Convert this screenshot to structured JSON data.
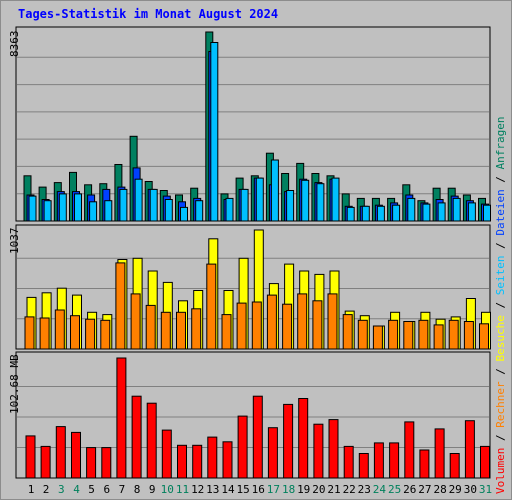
{
  "page": {
    "title": "Tages-Statistik im Monat August 2024"
  },
  "legend": {
    "anfragen": "Anfragen",
    "dateien": "Dateien",
    "seiten": "Seiten",
    "besuche": "Besuche",
    "rechner": "Rechner",
    "volumen": "Volumen",
    "sep": " / "
  },
  "colors": {
    "anfragen": "#008060",
    "dateien": "#0040ff",
    "seiten": "#00c0ff",
    "besuche": "#ffff00",
    "rechner": "#ff8000",
    "volumen": "#ff0000",
    "title": "#0000ff",
    "weekend_day": "#00805c",
    "weekday": "#000000",
    "background": "#c0c0c0"
  },
  "chart_data": [
    {
      "type": "bar",
      "panel": "hits",
      "ymax_label": "8363",
      "ylim": [
        0,
        8363
      ],
      "categories": [
        "1",
        "2",
        "3",
        "4",
        "5",
        "6",
        "7",
        "8",
        "9",
        "10",
        "11",
        "12",
        "13",
        "14",
        "15",
        "16",
        "17",
        "18",
        "19",
        "20",
        "21",
        "22",
        "23",
        "24",
        "25",
        "26",
        "27",
        "28",
        "29",
        "30",
        "31"
      ],
      "weekend_days": [
        "3",
        "4",
        "10",
        "11",
        "17",
        "18",
        "24",
        "25",
        "31"
      ],
      "series": [
        {
          "name": "Anfragen",
          "color_key": "anfragen",
          "values": [
            2000,
            1500,
            1700,
            2150,
            1600,
            1650,
            2500,
            3750,
            1750,
            1350,
            1150,
            1450,
            8363,
            1200,
            1900,
            2000,
            3000,
            2100,
            2550,
            2100,
            2000,
            1200,
            1000,
            1000,
            1000,
            1600,
            900,
            1450,
            1450,
            1150,
            1000
          ]
        },
        {
          "name": "Dateien",
          "color_key": "dateien",
          "values": [
            1150,
            950,
            1300,
            1300,
            1150,
            1400,
            1500,
            2350,
            1400,
            1100,
            850,
            1000,
            7500,
            950,
            1400,
            1900,
            1600,
            1300,
            1850,
            1700,
            1850,
            650,
            650,
            700,
            800,
            1150,
            800,
            950,
            1100,
            900,
            750
          ]
        },
        {
          "name": "Seiten",
          "color_key": "seiten",
          "values": [
            1100,
            900,
            1200,
            1200,
            850,
            900,
            1400,
            1850,
            1400,
            950,
            600,
            900,
            7900,
            1000,
            1400,
            1900,
            2700,
            1350,
            1800,
            1650,
            1900,
            600,
            650,
            650,
            700,
            1000,
            750,
            800,
            1000,
            800,
            700
          ]
        }
      ]
    },
    {
      "type": "bar",
      "panel": "visits",
      "ymax_label": "1037",
      "ylim": [
        0,
        1037
      ],
      "categories": [
        "1",
        "2",
        "3",
        "4",
        "5",
        "6",
        "7",
        "8",
        "9",
        "10",
        "11",
        "12",
        "13",
        "14",
        "15",
        "16",
        "17",
        "18",
        "19",
        "20",
        "21",
        "22",
        "23",
        "24",
        "25",
        "26",
        "27",
        "28",
        "29",
        "30",
        "31"
      ],
      "series": [
        {
          "name": "Besuche",
          "color_key": "besuche",
          "values": [
            450,
            490,
            530,
            470,
            320,
            300,
            780,
            790,
            680,
            580,
            420,
            510,
            960,
            510,
            790,
            1037,
            570,
            740,
            680,
            650,
            680,
            330,
            290,
            200,
            320,
            240,
            320,
            260,
            280,
            440,
            320
          ]
        },
        {
          "name": "Rechner",
          "color_key": "rechner",
          "values": [
            280,
            270,
            340,
            290,
            260,
            250,
            750,
            480,
            380,
            320,
            320,
            350,
            740,
            300,
            400,
            410,
            470,
            390,
            480,
            420,
            480,
            300,
            250,
            200,
            250,
            240,
            250,
            210,
            250,
            240,
            220
          ]
        }
      ]
    },
    {
      "type": "bar",
      "panel": "volume",
      "ymax_label": "102.68 MB",
      "ylim": [
        0,
        102.68
      ],
      "categories": [
        "1",
        "2",
        "3",
        "4",
        "5",
        "6",
        "7",
        "8",
        "9",
        "10",
        "11",
        "12",
        "13",
        "14",
        "15",
        "16",
        "17",
        "18",
        "19",
        "20",
        "21",
        "22",
        "23",
        "24",
        "25",
        "26",
        "27",
        "28",
        "29",
        "30",
        "31"
      ],
      "series": [
        {
          "name": "Volumen",
          "color_key": "volumen",
          "values": [
            36,
            27,
            44,
            39,
            26,
            26,
            102.68,
            70,
            64,
            41,
            28,
            28,
            35,
            31,
            53,
            70,
            43,
            63,
            68,
            46,
            50,
            27,
            21,
            30,
            30,
            48,
            24,
            42,
            21,
            49,
            27
          ]
        }
      ]
    }
  ]
}
